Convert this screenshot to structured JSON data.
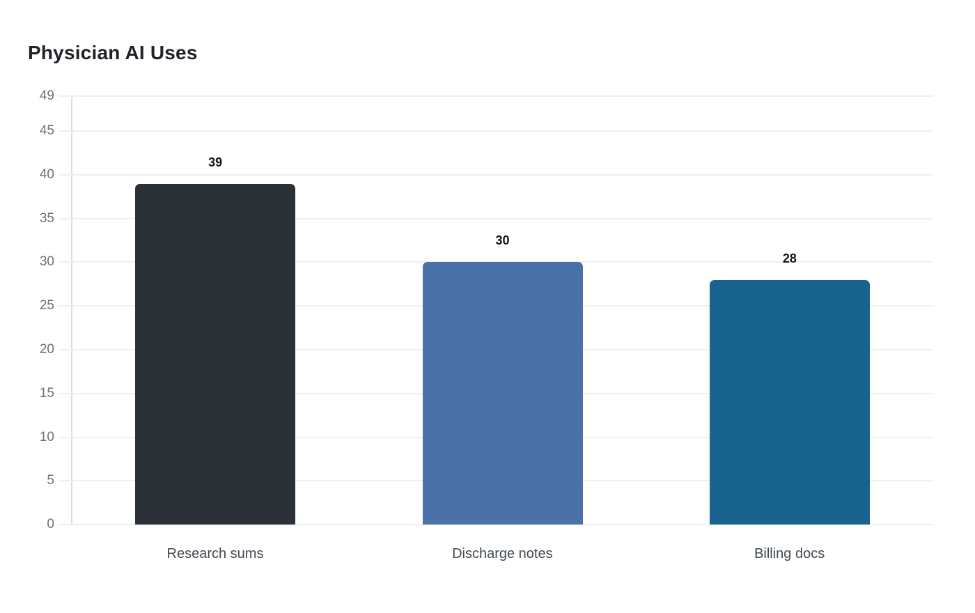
{
  "chart_data": {
    "type": "bar",
    "title": "Physician AI Uses",
    "categories": [
      "Research sums",
      "Discharge notes",
      "Billing docs"
    ],
    "values": [
      39,
      30,
      28
    ],
    "value_labels": [
      "39",
      "30",
      "28"
    ],
    "bar_colors": [
      "#2b3137",
      "#4a72a8",
      "#19648e"
    ],
    "yticks": [
      0,
      5,
      10,
      15,
      20,
      25,
      30,
      35,
      40,
      45,
      49
    ],
    "ylim": [
      0,
      49
    ],
    "xlabel": "",
    "ylabel": "",
    "grid": "horizontal",
    "legend": "none",
    "background": "#ffffff"
  },
  "style": {
    "title_color": "#1f2328",
    "tick_label_color": "#6d7074",
    "category_label_color": "#424a52",
    "value_label_color": "#15181b",
    "gridline_color": "#efefef",
    "bottom_axis_color": "#d4d4d4",
    "left_spine_color": "#dcdcdc"
  }
}
